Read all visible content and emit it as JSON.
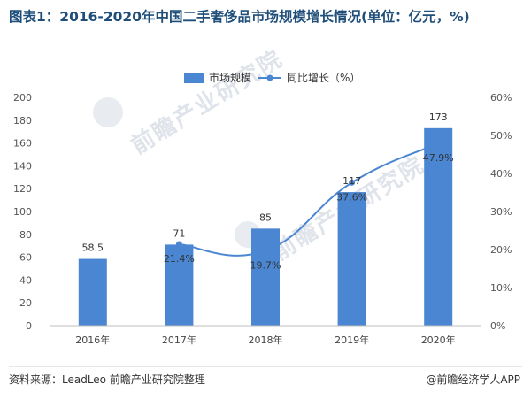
{
  "title": "图表1：2016-2020年中国二手奢侈品市场规模增长情况(单位：亿元，%)",
  "watermark": {
    "text": "前瞻产业研究院"
  },
  "source": "资料来源：LeadLeo 前瞻产业研究院整理",
  "credit": "@前瞻经济学人APP",
  "chart_data": {
    "type": "bar",
    "categories": [
      "2016年",
      "2017年",
      "2018年",
      "2019年",
      "2020年"
    ],
    "series": [
      {
        "name": "市场规模",
        "type": "bar",
        "axis": "left",
        "values": [
          58.5,
          71,
          85,
          117,
          173
        ],
        "labels": [
          "58.5",
          "71",
          "85",
          "117",
          "173"
        ]
      },
      {
        "name": "同比增长（%）",
        "type": "line",
        "axis": "right",
        "values": [
          null,
          21.4,
          19.7,
          37.6,
          47.9
        ],
        "labels": [
          "",
          "21.4%",
          "19.7%",
          "37.6%",
          "47.9%"
        ]
      }
    ],
    "ylim_left": [
      0,
      200
    ],
    "yticks_left": [
      "0",
      "20",
      "40",
      "60",
      "80",
      "100",
      "120",
      "140",
      "160",
      "180",
      "200"
    ],
    "ylim_right": [
      0,
      60
    ],
    "yticks_right": [
      "0%",
      "10%",
      "20%",
      "30%",
      "40%",
      "50%",
      "60%"
    ],
    "grid": false,
    "legend_position": "top-center",
    "colors": {
      "bar": "#4a86d1",
      "line": "#4a86d1",
      "title": "#1f4e79"
    }
  }
}
